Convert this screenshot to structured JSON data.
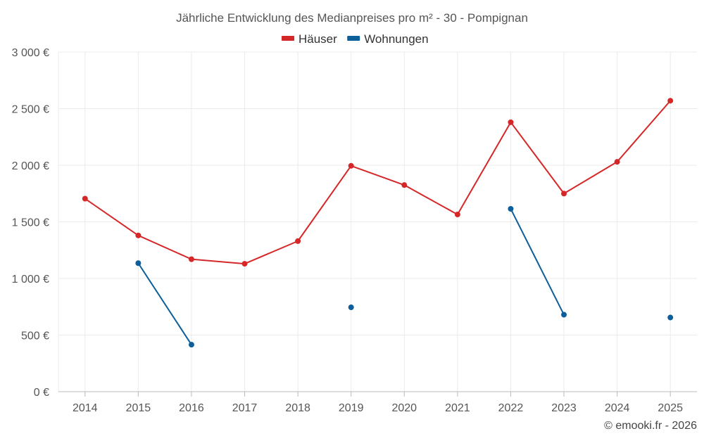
{
  "chart_data": {
    "type": "line",
    "title": "Jährliche Entwicklung des Medianpreises pro m² - 30 - Pompignan",
    "categories": [
      "2014",
      "2015",
      "2016",
      "2017",
      "2018",
      "2019",
      "2020",
      "2021",
      "2022",
      "2023",
      "2024",
      "2025"
    ],
    "ylim": [
      0,
      3000
    ],
    "yticks": [
      0,
      500,
      1000,
      1500,
      2000,
      2500,
      3000
    ],
    "ytick_labels": [
      "0 €",
      "500 €",
      "1 000 €",
      "1 500 €",
      "2 000 €",
      "2 500 €",
      "3 000 €"
    ],
    "grid": true,
    "legend_position": "top-center",
    "series": [
      {
        "name": "Häuser",
        "color": "#d62728",
        "values": [
          1705,
          1380,
          1170,
          1130,
          1330,
          1995,
          1825,
          1565,
          2380,
          1750,
          2030,
          2570
        ]
      },
      {
        "name": "Wohnungen",
        "color": "#0c5f9a",
        "values": [
          null,
          1135,
          415,
          null,
          null,
          745,
          null,
          null,
          1615,
          680,
          null,
          655
        ]
      }
    ],
    "credit": "© emooki.fr - 2026"
  }
}
